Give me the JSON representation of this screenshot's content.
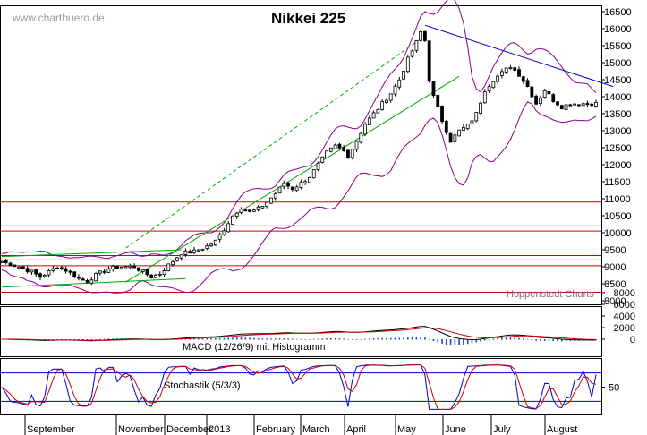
{
  "chart_data": [
    {
      "type": "candlestick",
      "title": "Nikkei 225",
      "watermark": "www.chartbuero.de",
      "credit": "Hoppenstedt Charts",
      "ylim": [
        8000,
        16700
      ],
      "yticks": [
        8000,
        8500,
        9000,
        9500,
        10000,
        10500,
        11000,
        11500,
        12000,
        12500,
        13000,
        13500,
        14000,
        14500,
        15000,
        15500,
        16000,
        16500
      ],
      "x_labels": [
        "September",
        "November",
        "December",
        "2013",
        "February",
        "March",
        "April",
        "May",
        "June",
        "July",
        "August"
      ],
      "close_path": [
        [
          0,
          9150
        ],
        [
          4,
          9000
        ],
        [
          7,
          8850
        ],
        [
          9,
          8700
        ],
        [
          11,
          8850
        ],
        [
          13,
          9000
        ],
        [
          15,
          8900
        ],
        [
          18,
          8650
        ],
        [
          20,
          8580
        ],
        [
          22,
          8750
        ],
        [
          25,
          8950
        ],
        [
          28,
          9000
        ],
        [
          31,
          9000
        ],
        [
          33,
          8850
        ],
        [
          35,
          8700
        ],
        [
          37,
          8800
        ],
        [
          39,
          9050
        ],
        [
          42,
          9400
        ],
        [
          45,
          9450
        ],
        [
          48,
          9600
        ],
        [
          50,
          9750
        ],
        [
          52,
          10100
        ],
        [
          54,
          10500
        ],
        [
          56,
          10750
        ],
        [
          58,
          10600
        ],
        [
          60,
          10700
        ],
        [
          62,
          10900
        ],
        [
          64,
          11150
        ],
        [
          66,
          11450
        ],
        [
          68,
          11300
        ],
        [
          70,
          11450
        ],
        [
          72,
          11650
        ],
        [
          74,
          12000
        ],
        [
          76,
          12350
        ],
        [
          78,
          12550
        ],
        [
          80,
          12400
        ],
        [
          81,
          12250
        ],
        [
          83,
          12700
        ],
        [
          85,
          13200
        ],
        [
          87,
          13500
        ],
        [
          89,
          13800
        ],
        [
          91,
          14100
        ],
        [
          93,
          14500
        ],
        [
          95,
          15100
        ],
        [
          97,
          15600
        ],
        [
          98,
          15900
        ],
        [
          99,
          15650
        ],
        [
          100,
          14500
        ],
        [
          101,
          14000
        ],
        [
          103,
          13300
        ],
        [
          105,
          12700
        ],
        [
          107,
          13000
        ],
        [
          109,
          13150
        ],
        [
          111,
          13500
        ],
        [
          113,
          14200
        ],
        [
          115,
          14500
        ],
        [
          117,
          14700
        ],
        [
          119,
          14900
        ],
        [
          121,
          14650
        ],
        [
          123,
          14300
        ],
        [
          125,
          13800
        ],
        [
          127,
          14200
        ],
        [
          129,
          13900
        ],
        [
          131,
          13700
        ],
        [
          133,
          13800
        ]
      ],
      "horizontal_levels": [
        10900,
        10200,
        10050,
        9330,
        9200,
        9030,
        8250
      ],
      "trendlines": [
        {
          "name": "resistance",
          "from": [
            99,
            16100
          ],
          "to": [
            143,
            14300
          ],
          "color": "#0000cc"
        },
        {
          "name": "support-upper",
          "from": [
            29,
            9550
          ],
          "to": [
            98,
            15700
          ],
          "color": "#00aa00",
          "style": "dashed"
        },
        {
          "name": "support-lower",
          "from": [
            29,
            8550
          ],
          "to": [
            107,
            14600
          ],
          "color": "#00aa00"
        },
        {
          "name": "base-channel-top",
          "from": [
            0,
            9300
          ],
          "to": [
            42,
            9500
          ],
          "color": "#00aa00"
        },
        {
          "name": "base-channel-bottom",
          "from": [
            0,
            8400
          ],
          "to": [
            43,
            8650
          ],
          "color": "#00aa00"
        }
      ]
    },
    {
      "type": "macd",
      "caption": "MACD (12/26/9) mit Histogramm",
      "yticks": [
        8000,
        6000,
        4000,
        2000,
        0
      ],
      "ylim": [
        -3000,
        8200
      ]
    },
    {
      "type": "stochastic",
      "caption": "Stochastik (5/3/3)",
      "yticks": [
        50
      ],
      "ylim": [
        0,
        100
      ],
      "levels": [
        80,
        20
      ]
    }
  ]
}
